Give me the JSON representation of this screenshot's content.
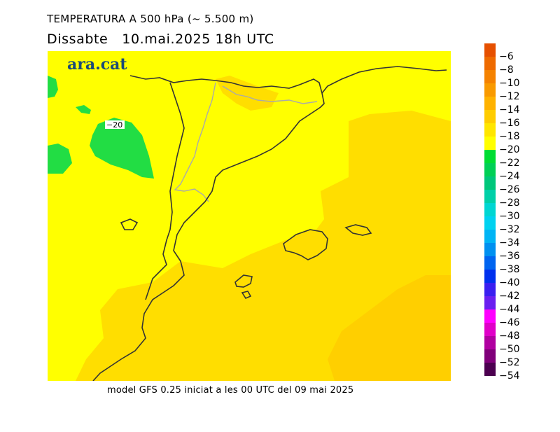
{
  "title": "TEMPERATURA A 500 hPa (~ 5.500 m)",
  "subtitle": "Dissabte   10.mai.2025 18h UTC",
  "footer": "model GFS 0.25 iniciat a les 00 UTC del 09 mai 2025",
  "logo": "ara.cat",
  "contour_label": "−20",
  "colors": {
    "field_main": "#ffff00",
    "field_warm": "#ffde00",
    "field_warmer": "#ffcf00",
    "field_cold": "#22dd44",
    "coast": "#333333",
    "border": "#aaaaaa",
    "logo": "#1a4a78"
  },
  "legend": {
    "items": [
      {
        "label": "−6",
        "color": "#e65000"
      },
      {
        "label": "−8",
        "color": "#ee6a00"
      },
      {
        "label": "−10",
        "color": "#f58200"
      },
      {
        "label": "−12",
        "color": "#f99a00"
      },
      {
        "label": "−14",
        "color": "#ffb200"
      },
      {
        "label": "−16",
        "color": "#ffcc00"
      },
      {
        "label": "−18",
        "color": "#ffe600"
      },
      {
        "label": "−20",
        "color": "#ffff00"
      },
      {
        "label": "−22",
        "color": "#00dd33"
      },
      {
        "label": "−24",
        "color": "#00d055"
      },
      {
        "label": "−26",
        "color": "#00c77a"
      },
      {
        "label": "−28",
        "color": "#00d0a8"
      },
      {
        "label": "−30",
        "color": "#00d6d2"
      },
      {
        "label": "−32",
        "color": "#00d2f0"
      },
      {
        "label": "−34",
        "color": "#00b4f5"
      },
      {
        "label": "−36",
        "color": "#0090f0"
      },
      {
        "label": "−38",
        "color": "#0064f0"
      },
      {
        "label": "−40",
        "color": "#0030ee"
      },
      {
        "label": "−42",
        "color": "#3a1ff0"
      },
      {
        "label": "−44",
        "color": "#6a1ff0"
      },
      {
        "label": "−46",
        "color": "#ff00ff"
      },
      {
        "label": "−48",
        "color": "#e000c8"
      },
      {
        "label": "−50",
        "color": "#b000a0"
      },
      {
        "label": "−52",
        "color": "#80007a"
      },
      {
        "label": "−54",
        "color": "#4c0050"
      }
    ]
  }
}
